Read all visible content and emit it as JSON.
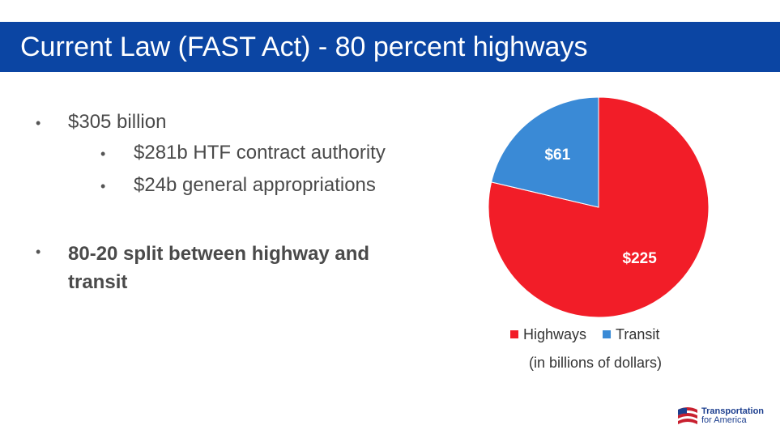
{
  "header": {
    "title": "Current Law (FAST Act) - 80 percent highways"
  },
  "bullets": [
    {
      "text": "$305 billion",
      "sub": [
        "$281b HTF contract authority",
        "$24b general appropriations"
      ]
    },
    {
      "text": "80-20 split between highway and transit",
      "sub": []
    }
  ],
  "chart_data": {
    "type": "pie",
    "categories": [
      "Highways",
      "Transit"
    ],
    "values": [
      225,
      61
    ],
    "value_labels": [
      "$225",
      "$61"
    ],
    "colors": [
      "#f21d28",
      "#3a8ad6"
    ],
    "note": "(in billions of dollars)",
    "legend": "bottom"
  },
  "logo": {
    "line1": "Transportation",
    "line2": "for America"
  }
}
